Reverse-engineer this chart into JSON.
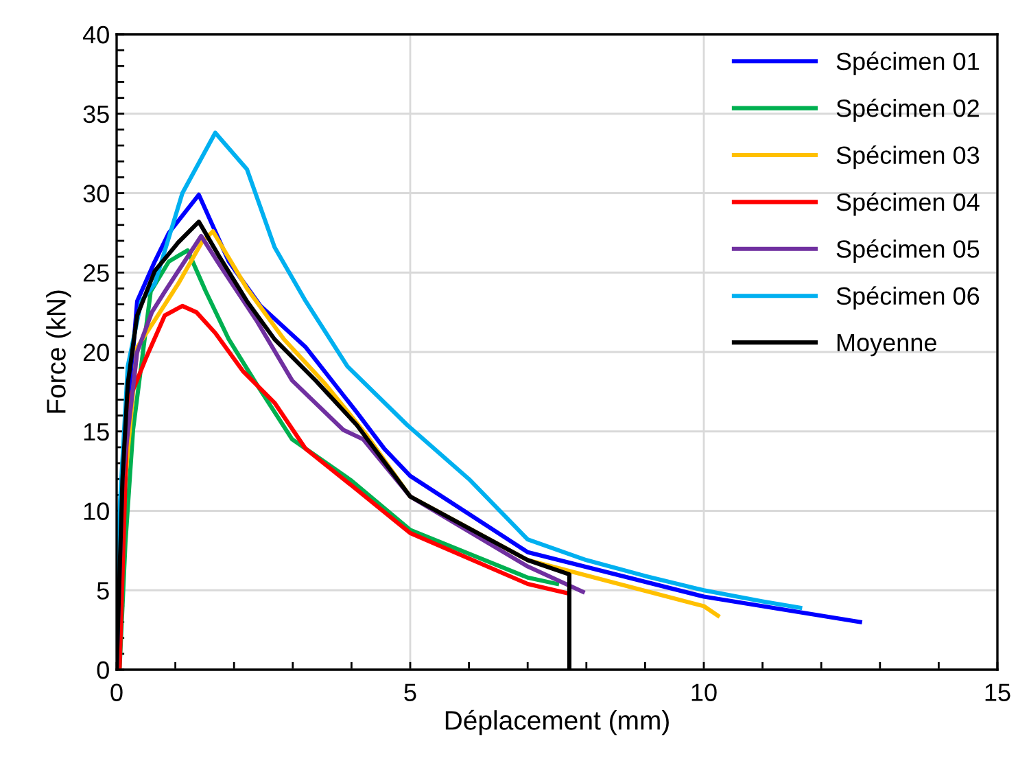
{
  "chart_data": {
    "type": "line",
    "xlabel": "Déplacement (mm)",
    "ylabel": "Force (kN)",
    "xlim": [
      0,
      15
    ],
    "ylim": [
      0,
      40
    ],
    "xticks": [
      0,
      {
        "value": 1,
        "label": null
      },
      {
        "value": 2,
        "label": null
      },
      {
        "value": 3,
        "label": null
      },
      {
        "value": 4,
        "label": null
      },
      5,
      {
        "value": 6,
        "label": null
      },
      {
        "value": 7,
        "label": null
      },
      {
        "value": 8,
        "label": null
      },
      {
        "value": 9,
        "label": null
      },
      10,
      {
        "value": 11,
        "label": null
      },
      {
        "value": 12,
        "label": null
      },
      {
        "value": 13,
        "label": null
      },
      {
        "value": 14,
        "label": null
      },
      15
    ],
    "yticks": [
      0,
      {
        "value": 1,
        "label": null
      },
      {
        "value": 2,
        "label": null
      },
      {
        "value": 3,
        "label": null
      },
      {
        "value": 4,
        "label": null
      },
      5,
      {
        "value": 6,
        "label": null
      },
      {
        "value": 7,
        "label": null
      },
      {
        "value": 8,
        "label": null
      },
      {
        "value": 9,
        "label": null
      },
      10,
      {
        "value": 11,
        "label": null
      },
      {
        "value": 12,
        "label": null
      },
      {
        "value": 13,
        "label": null
      },
      {
        "value": 14,
        "label": null
      },
      15,
      {
        "value": 16,
        "label": null
      },
      {
        "value": 17,
        "label": null
      },
      {
        "value": 18,
        "label": null
      },
      {
        "value": 19,
        "label": null
      },
      20,
      {
        "value": 21,
        "label": null
      },
      {
        "value": 22,
        "label": null
      },
      {
        "value": 23,
        "label": null
      },
      {
        "value": 24,
        "label": null
      },
      25,
      {
        "value": 26,
        "label": null
      },
      {
        "value": 27,
        "label": null
      },
      {
        "value": 28,
        "label": null
      },
      {
        "value": 29,
        "label": null
      },
      30,
      {
        "value": 31,
        "label": null
      },
      {
        "value": 32,
        "label": null
      },
      {
        "value": 33,
        "label": null
      },
      {
        "value": 34,
        "label": null
      },
      35,
      {
        "value": 36,
        "label": null
      },
      {
        "value": 37,
        "label": null
      },
      {
        "value": 38,
        "label": null
      },
      {
        "value": 39,
        "label": null
      },
      40
    ],
    "grid": true,
    "legend": "top right",
    "marker": "none",
    "line_style": "solid",
    "series": [
      {
        "name": "Spécimen 01",
        "color": "#0000ff",
        "x": [
          0,
          0.1,
          0.35,
          0.65,
          0.89,
          1.4,
          1.91,
          2.45,
          3.22,
          4.09,
          4.56,
          5,
          7,
          10,
          12.66
        ],
        "values": [
          0,
          12,
          23.2,
          25.7,
          27.5,
          29.9,
          25.7,
          22.9,
          20.3,
          16.2,
          13.9,
          12.2,
          7.4,
          4.6,
          3.0
        ]
      },
      {
        "name": "Spécimen 02",
        "color": "#00b050",
        "x": [
          0.05,
          0.15,
          0.28,
          0.58,
          0.89,
          1.21,
          1.52,
          1.91,
          2.38,
          2.99,
          4,
          5,
          7,
          7.5
        ],
        "values": [
          0,
          8,
          15.1,
          23.8,
          25.7,
          26.4,
          23.8,
          20.8,
          18.0,
          14.5,
          11.9,
          8.8,
          5.8,
          5.4
        ]
      },
      {
        "name": "Spécimen 03",
        "color": "#ffc000",
        "x": [
          0,
          0.1,
          0.35,
          0.65,
          1.05,
          1.45,
          1.64,
          2.22,
          2.85,
          3.55,
          4.25,
          5,
          7,
          10,
          10.24
        ],
        "values": [
          0,
          10,
          20.3,
          22,
          24.3,
          26.9,
          27.6,
          24.0,
          20.8,
          18.0,
          14.8,
          10.9,
          6.9,
          4.0,
          3.4
        ]
      },
      {
        "name": "Spécimen 04",
        "color": "#ff0000",
        "x": [
          0.05,
          0.19,
          0.51,
          0.82,
          1.12,
          1.36,
          1.68,
          2.15,
          2.69,
          3.22,
          4,
          5,
          7,
          7.69
        ],
        "values": [
          0,
          16.8,
          19.7,
          22.3,
          22.9,
          22.5,
          21.2,
          18.8,
          16.8,
          13.9,
          11.6,
          8.6,
          5.4,
          4.8
        ]
      },
      {
        "name": "Spécimen 05",
        "color": "#7030a0",
        "x": [
          0,
          0.1,
          0.35,
          0.6,
          0.82,
          1.44,
          1.75,
          2.38,
          2.99,
          3.86,
          4.2,
          5,
          7,
          7.94
        ],
        "values": [
          0,
          12,
          20,
          22.5,
          23.8,
          27.3,
          25.5,
          22.0,
          18.2,
          15.1,
          14.5,
          10.9,
          6.5,
          4.9
        ]
      },
      {
        "name": "Spécimen 06",
        "color": "#00b0f0",
        "x": [
          0,
          0.05,
          0.19,
          0.42,
          0.65,
          1.12,
          1.68,
          2.22,
          2.69,
          3.22,
          3.93,
          4.95,
          6,
          7,
          8,
          9,
          10,
          11,
          11.64
        ],
        "values": [
          0,
          10,
          19.1,
          23.2,
          24.3,
          30,
          33.8,
          31.5,
          26.6,
          23.2,
          19.1,
          15.4,
          12,
          8.2,
          6.9,
          5.9,
          5.0,
          4.3,
          3.9
        ]
      },
      {
        "name": "Moyenne",
        "color": "#000000",
        "x": [
          0,
          0.1,
          0.19,
          0.35,
          0.65,
          1.05,
          1.4,
          1.75,
          2.22,
          2.69,
          3.39,
          4.09,
          5,
          7,
          7.71,
          7.71
        ],
        "values": [
          0,
          12,
          18,
          22.3,
          25.1,
          26.9,
          28.2,
          26.0,
          23.2,
          20.8,
          18.2,
          15.4,
          10.9,
          6.9,
          6.0,
          0
        ]
      }
    ]
  }
}
